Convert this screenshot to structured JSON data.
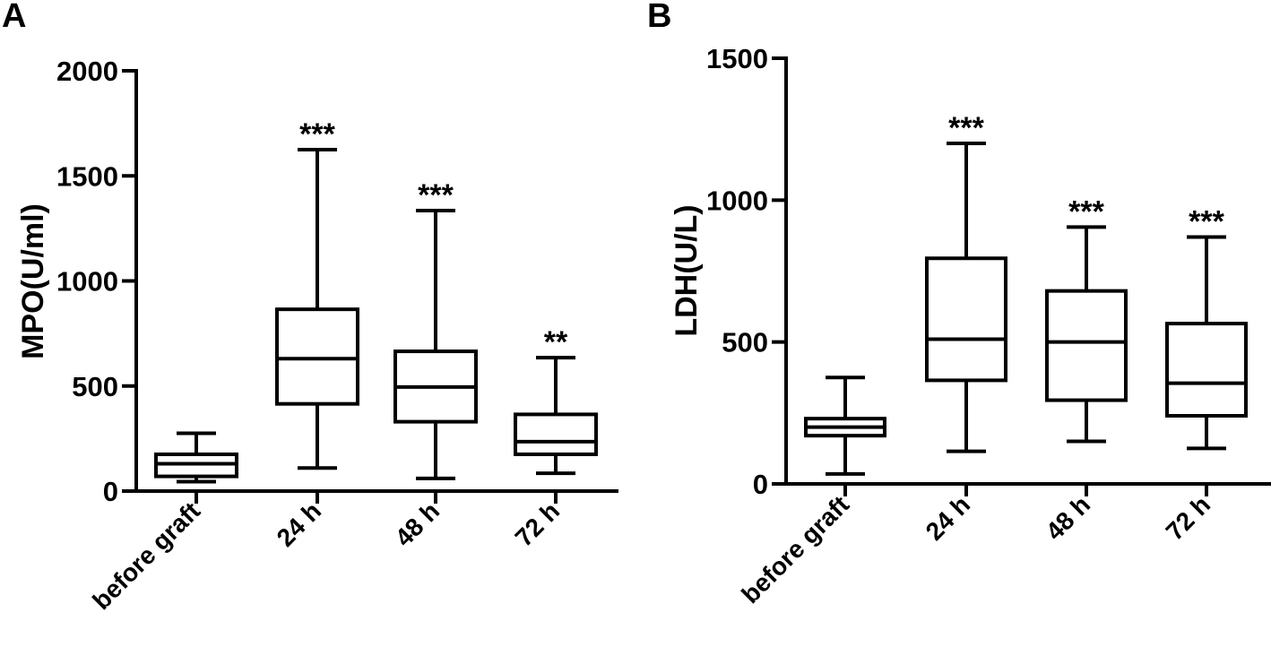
{
  "chart_data": [
    {
      "panel": "A",
      "type": "box",
      "ylabel": "MPO(U/ml)",
      "ylim": [
        0,
        2000
      ],
      "yticks": [
        0,
        500,
        1000,
        1500,
        2000
      ],
      "categories": [
        "before graft",
        "24 h",
        "48 h",
        "72 h"
      ],
      "boxes": [
        {
          "min": 45,
          "q1": 70,
          "median": 130,
          "q3": 175,
          "max": 275,
          "annotation": ""
        },
        {
          "min": 110,
          "q1": 415,
          "median": 630,
          "q3": 865,
          "max": 1625,
          "annotation": "***"
        },
        {
          "min": 60,
          "q1": 330,
          "median": 495,
          "q3": 665,
          "max": 1335,
          "annotation": "***"
        },
        {
          "min": 85,
          "q1": 175,
          "median": 235,
          "q3": 365,
          "max": 635,
          "annotation": "**"
        }
      ]
    },
    {
      "panel": "B",
      "type": "box",
      "ylabel": "LDH(U/L)",
      "ylim": [
        0,
        1500
      ],
      "yticks": [
        0,
        500,
        1000,
        1500
      ],
      "categories": [
        "before graft",
        "24 h",
        "48 h",
        "72 h"
      ],
      "boxes": [
        {
          "min": 35,
          "q1": 170,
          "median": 200,
          "q3": 230,
          "max": 375,
          "annotation": ""
        },
        {
          "min": 115,
          "q1": 365,
          "median": 510,
          "q3": 795,
          "max": 1200,
          "annotation": "***"
        },
        {
          "min": 150,
          "q1": 295,
          "median": 500,
          "q3": 680,
          "max": 905,
          "annotation": "***"
        },
        {
          "min": 125,
          "q1": 240,
          "median": 355,
          "q3": 565,
          "max": 870,
          "annotation": "***"
        }
      ]
    }
  ]
}
